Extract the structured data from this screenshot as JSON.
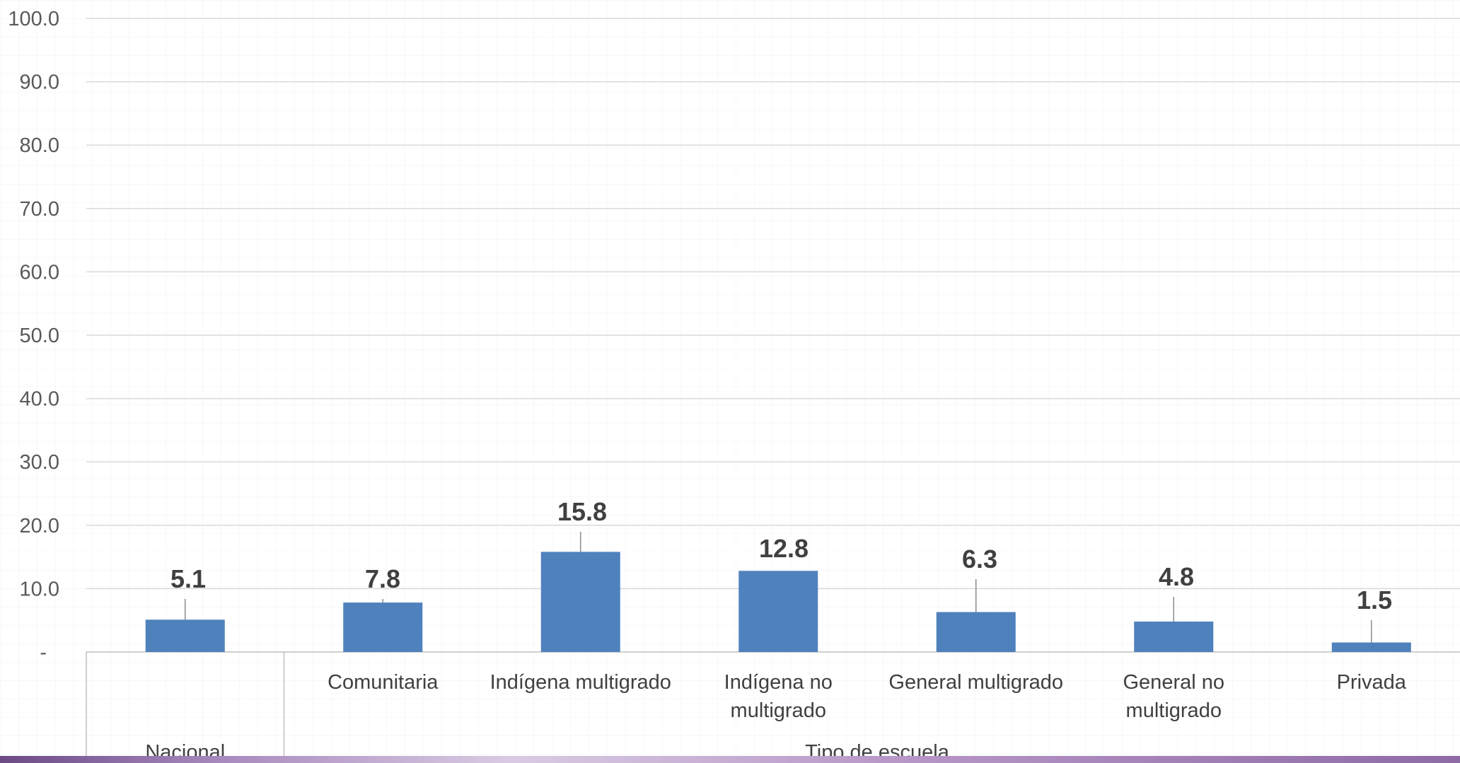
{
  "chart_data": {
    "type": "bar",
    "categories": [
      "",
      "Comunitaria",
      "Indígena multigrado",
      "Indígena no multigrado",
      "General multigrado",
      "General no multigrado",
      "Privada"
    ],
    "category_lines": [
      [
        ""
      ],
      [
        "Comunitaria"
      ],
      [
        "Indígena multigrado"
      ],
      [
        "Indígena no",
        "multigrado"
      ],
      [
        "General multigrado"
      ],
      [
        "General no",
        "multigrado"
      ],
      [
        "Privada"
      ]
    ],
    "groups": [
      {
        "label": "Nacional",
        "count": 1
      },
      {
        "label": "Tipo de escuela",
        "count": 6
      }
    ],
    "values": [
      5.1,
      7.8,
      15.8,
      12.8,
      6.3,
      4.8,
      1.5
    ],
    "value_labels": [
      "5.1",
      "7.8",
      "15.8",
      "12.8",
      "6.3",
      "4.8",
      "1.5"
    ],
    "y_ticks": [
      "-",
      "10.0",
      "20.0",
      "30.0",
      "40.0",
      "50.0",
      "60.0",
      "70.0",
      "80.0",
      "90.0",
      "100.0"
    ],
    "ylim": [
      0,
      100
    ],
    "title": "",
    "xlabel": "",
    "ylabel": "",
    "grid": true,
    "colors": {
      "bar": "#4f81bd",
      "grid": "#d9d9d9",
      "axis": "#bfbfbf",
      "label": "#404040"
    }
  }
}
